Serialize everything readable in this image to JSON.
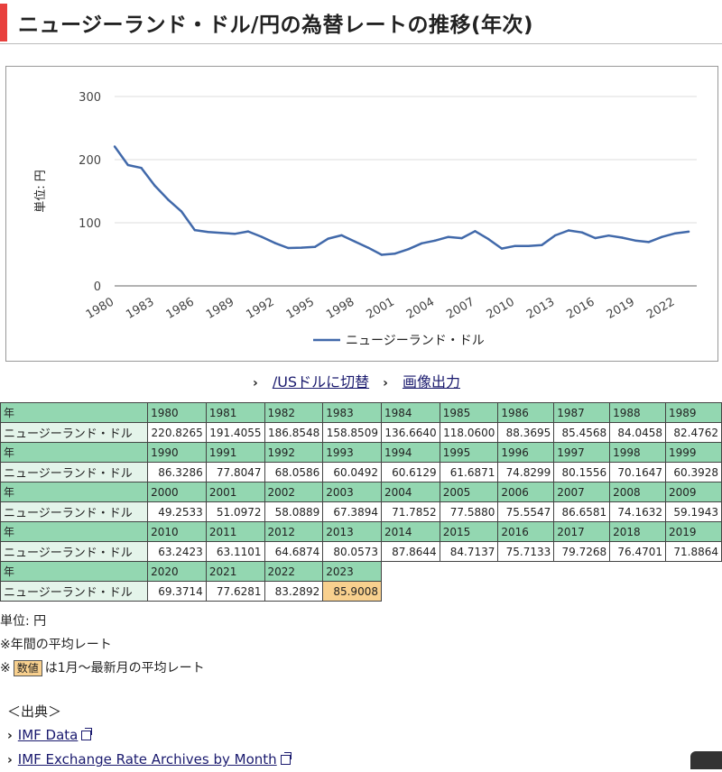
{
  "page": {
    "title": "ニュージーランド・ドル/円の為替レートの推移(年次)"
  },
  "chart_data": {
    "type": "line",
    "ylabel": "単位: 円",
    "ylim": [
      0,
      300
    ],
    "yticks": [
      0,
      100,
      200,
      300
    ],
    "xtick_labels": [
      "1980",
      "1983",
      "1986",
      "1989",
      "1992",
      "1995",
      "1998",
      "2001",
      "2004",
      "2007",
      "2010",
      "2013",
      "2016",
      "2019",
      "2022"
    ],
    "grid": true,
    "legend_position": "bottom",
    "series": [
      {
        "name": "ニュージーランド・ドル",
        "color": "#4169aa",
        "x": [
          1980,
          1981,
          1982,
          1983,
          1984,
          1985,
          1986,
          1987,
          1988,
          1989,
          1990,
          1991,
          1992,
          1993,
          1994,
          1995,
          1996,
          1997,
          1998,
          1999,
          2000,
          2001,
          2002,
          2003,
          2004,
          2005,
          2006,
          2007,
          2008,
          2009,
          2010,
          2011,
          2012,
          2013,
          2014,
          2015,
          2016,
          2017,
          2018,
          2019,
          2020,
          2021,
          2022,
          2023
        ],
        "values": [
          220.8265,
          191.4055,
          186.8548,
          158.8509,
          136.664,
          118.06,
          88.3695,
          85.4568,
          84.0458,
          82.4762,
          86.3286,
          77.8047,
          68.0586,
          60.0492,
          60.6129,
          61.6871,
          74.8299,
          80.1556,
          70.1647,
          60.3928,
          49.2533,
          51.0972,
          58.0889,
          67.3894,
          71.7852,
          77.588,
          75.5547,
          86.6581,
          74.1632,
          59.1943,
          63.2423,
          63.1101,
          64.6874,
          80.0573,
          87.8644,
          84.7137,
          75.7133,
          79.7268,
          76.4701,
          71.8864,
          69.3714,
          77.6281,
          83.2892,
          85.9008
        ]
      }
    ]
  },
  "links": {
    "switch_label": "/USドルに切替",
    "export_label": "画像出力"
  },
  "table": {
    "year_header": "年",
    "row_label": "ニュージーランド・ドル",
    "rows": [
      {
        "years": [
          "1980",
          "1981",
          "1982",
          "1983",
          "1984",
          "1985",
          "1986",
          "1987",
          "1988",
          "1989"
        ],
        "values": [
          "220.8265",
          "191.4055",
          "186.8548",
          "158.8509",
          "136.6640",
          "118.0600",
          "88.3695",
          "85.4568",
          "84.0458",
          "82.4762"
        ]
      },
      {
        "years": [
          "1990",
          "1991",
          "1992",
          "1993",
          "1994",
          "1995",
          "1996",
          "1997",
          "1998",
          "1999"
        ],
        "values": [
          "86.3286",
          "77.8047",
          "68.0586",
          "60.0492",
          "60.6129",
          "61.6871",
          "74.8299",
          "80.1556",
          "70.1647",
          "60.3928"
        ]
      },
      {
        "years": [
          "2000",
          "2001",
          "2002",
          "2003",
          "2004",
          "2005",
          "2006",
          "2007",
          "2008",
          "2009"
        ],
        "values": [
          "49.2533",
          "51.0972",
          "58.0889",
          "67.3894",
          "71.7852",
          "77.5880",
          "75.5547",
          "86.6581",
          "74.1632",
          "59.1943"
        ]
      },
      {
        "years": [
          "2010",
          "2011",
          "2012",
          "2013",
          "2014",
          "2015",
          "2016",
          "2017",
          "2018",
          "2019"
        ],
        "values": [
          "63.2423",
          "63.1101",
          "64.6874",
          "80.0573",
          "87.8644",
          "84.7137",
          "75.7133",
          "79.7268",
          "76.4701",
          "71.8864"
        ]
      },
      {
        "years": [
          "2020",
          "2021",
          "2022",
          "2023"
        ],
        "values": [
          "69.3714",
          "77.6281",
          "83.2892",
          "85.9008"
        ]
      }
    ],
    "highlight_year": "2023",
    "highlight_color": "#f8d08e"
  },
  "notes": {
    "unit": "単位: 円",
    "annual_avg": "※年間の平均レート",
    "prefix": "※",
    "badge": "数値",
    "partial_avg": "は1月～最新月の平均レート"
  },
  "source": {
    "heading": "＜出典＞",
    "link1": "IMF Data",
    "link2": "IMF Exchange Rate Archives by Month"
  }
}
